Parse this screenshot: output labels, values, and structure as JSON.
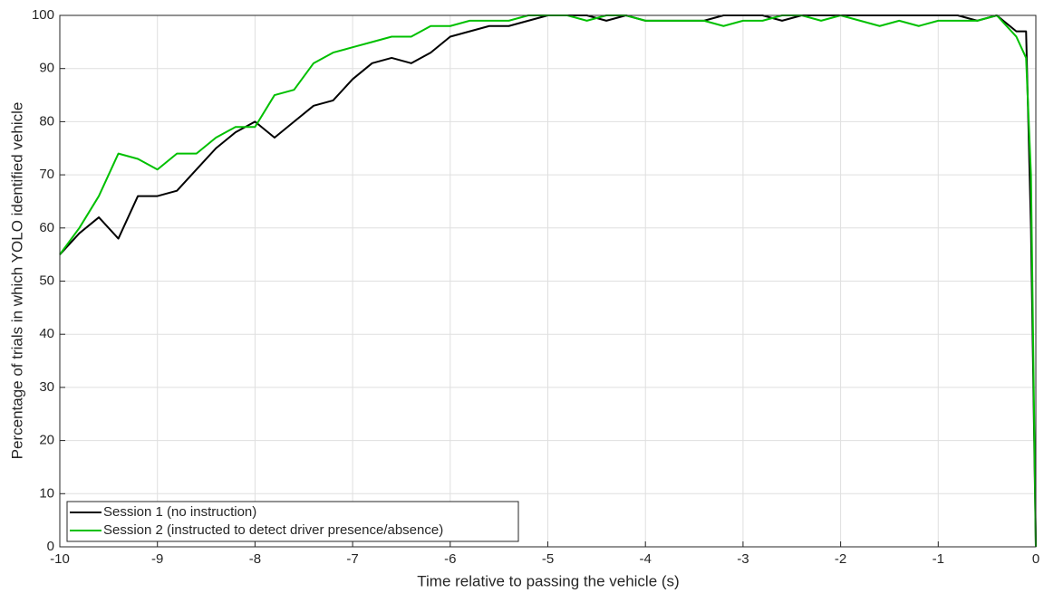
{
  "chart_data": {
    "type": "line",
    "xlabel": "Time relative to passing the vehicle (s)",
    "ylabel": "Percentage of trials in which YOLO identified vehicle",
    "x": [
      -10,
      -9.8,
      -9.6,
      -9.4,
      -9.2,
      -9.0,
      -8.8,
      -8.6,
      -8.4,
      -8.2,
      -8.0,
      -7.8,
      -7.6,
      -7.4,
      -7.2,
      -7.0,
      -6.8,
      -6.6,
      -6.4,
      -6.2,
      -6.0,
      -5.8,
      -5.6,
      -5.4,
      -5.2,
      -5.0,
      -4.8,
      -4.6,
      -4.4,
      -4.2,
      -4.0,
      -3.8,
      -3.6,
      -3.4,
      -3.2,
      -3.0,
      -2.8,
      -2.6,
      -2.4,
      -2.2,
      -2.0,
      -1.8,
      -1.6,
      -1.4,
      -1.2,
      -1.0,
      -0.8,
      -0.6,
      -0.4,
      -0.2,
      -0.1,
      -0.05,
      0
    ],
    "series": [
      {
        "name": "Session 1 (no instruction)",
        "color": "#000000",
        "values": [
          55,
          59,
          62,
          58,
          66,
          66,
          67,
          71,
          75,
          78,
          80,
          77,
          80,
          83,
          84,
          88,
          91,
          92,
          91,
          93,
          96,
          97,
          98,
          98,
          99,
          100,
          100,
          100,
          99,
          100,
          99,
          99,
          99,
          99,
          100,
          100,
          100,
          99,
          100,
          100,
          100,
          100,
          100,
          100,
          100,
          100,
          100,
          99,
          100,
          97,
          97,
          60,
          0
        ]
      },
      {
        "name": "Session 2 (instructed to detect driver presence/absence)",
        "color": "#00c000",
        "values": [
          55,
          60,
          66,
          74,
          73,
          71,
          74,
          74,
          77,
          79,
          79,
          85,
          86,
          91,
          93,
          94,
          95,
          96,
          96,
          98,
          98,
          99,
          99,
          99,
          100,
          100,
          100,
          99,
          100,
          100,
          99,
          99,
          99,
          99,
          98,
          99,
          99,
          100,
          100,
          99,
          100,
          99,
          98,
          99,
          98,
          99,
          99,
          99,
          100,
          96,
          92,
          70,
          0
        ]
      }
    ],
    "xlim": [
      -10,
      0
    ],
    "xticks": [
      -10,
      -9,
      -8,
      -7,
      -6,
      -5,
      -4,
      -3,
      -2,
      -1,
      0
    ],
    "ylim": [
      0,
      100
    ],
    "yticks": [
      0,
      10,
      20,
      30,
      40,
      50,
      60,
      70,
      80,
      90,
      100
    ],
    "grid": true,
    "legend": "lower-left"
  }
}
